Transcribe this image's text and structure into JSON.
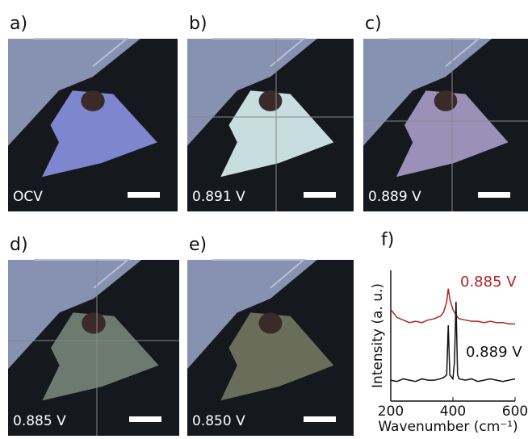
{
  "panels": [
    {
      "label": "a)",
      "caption": "OCV"
    },
    {
      "label": "b)",
      "caption": "0.891 V"
    },
    {
      "label": "c)",
      "caption": "0.889 V"
    },
    {
      "label": "d)",
      "caption": "0.885 V"
    },
    {
      "label": "e)",
      "caption": "0.850 V"
    }
  ],
  "chart_data": {
    "type": "line",
    "panel_label": "f)",
    "xlabel": "Wavenumber (cm⁻¹)",
    "ylabel": "Intensity (a. u.)",
    "x": [
      200,
      220,
      240,
      260,
      280,
      300,
      320,
      340,
      360,
      370,
      380,
      385,
      390,
      400,
      405,
      410,
      415,
      420,
      440,
      460,
      480,
      500,
      520,
      540,
      560,
      580,
      600
    ],
    "series": [
      {
        "name": "0.885 V",
        "color": "#b22222",
        "values": [
          0.7,
          0.64,
          0.62,
          0.6,
          0.61,
          0.6,
          0.62,
          0.63,
          0.65,
          0.68,
          0.76,
          0.86,
          0.78,
          0.7,
          0.68,
          0.66,
          0.64,
          0.63,
          0.62,
          0.61,
          0.61,
          0.6,
          0.61,
          0.6,
          0.6,
          0.59,
          0.59
        ]
      },
      {
        "name": "0.889 V",
        "color": "#111111",
        "values": [
          0.16,
          0.15,
          0.17,
          0.16,
          0.15,
          0.17,
          0.16,
          0.16,
          0.17,
          0.18,
          0.2,
          0.58,
          0.2,
          0.17,
          0.3,
          0.76,
          0.2,
          0.17,
          0.16,
          0.17,
          0.15,
          0.16,
          0.17,
          0.16,
          0.15,
          0.16,
          0.17
        ]
      }
    ],
    "xlim": [
      200,
      600
    ],
    "ylim": [
      0,
      1
    ],
    "xticks": [
      200,
      400,
      600
    ]
  }
}
